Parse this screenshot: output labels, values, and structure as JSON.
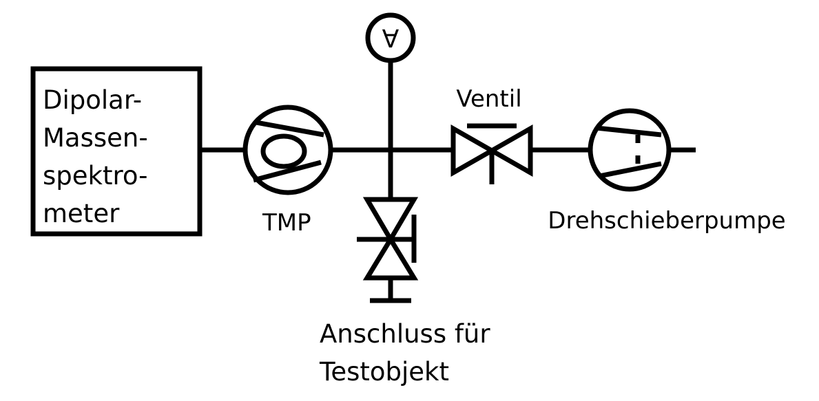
{
  "labels": {
    "spectrometer": [
      "Dipolar-",
      "Massen-",
      "spektro-",
      "meter"
    ],
    "tmp": "TMP",
    "valve": "Ventil",
    "rotary_pump": "Drehschieberpumpe",
    "test_port": [
      "Anschluss für",
      "Testobjekt"
    ],
    "gauge_symbol": "∀"
  }
}
